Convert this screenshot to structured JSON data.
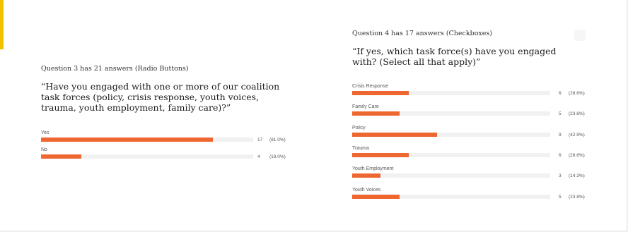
{
  "colors": {
    "bar": "#ee6630",
    "track": "#f1f1f1",
    "accent": "#f2c200"
  },
  "chart_data": [
    {
      "type": "bar",
      "orientation": "horizontal",
      "title": "Question 3 has 21 answers (Radio Buttons)",
      "question": "“Have you engaged with one or more of our coalition task forces (policy, crisis response, youth voices, trauma, youth employment, family care)?”",
      "categories": [
        "Yes",
        "No"
      ],
      "values": [
        17,
        4
      ],
      "value_labels": [
        "17",
        "4"
      ],
      "percent_labels": [
        "(81.0%)",
        "(19.0%)"
      ],
      "xlim": [
        0,
        21
      ]
    },
    {
      "type": "bar",
      "orientation": "horizontal",
      "title": "Question 4 has 17 answers (Checkboxes)",
      "question": "“If yes, which task force(s) have you engaged with? (Select all that apply)”",
      "categories": [
        "Crisis Response",
        "Family Care",
        "Policy",
        "Trauma",
        "Youth Employment",
        "Youth Voices"
      ],
      "values": [
        6,
        5,
        9,
        6,
        3,
        5
      ],
      "value_labels": [
        "6",
        "5",
        "9",
        "6",
        "3",
        "5"
      ],
      "percent_labels": [
        "(28.6%)",
        "(23.8%)",
        "(42.9%)",
        "(28.6%)",
        "(14.3%)",
        "(23.8%)"
      ],
      "xlim": [
        0,
        21
      ]
    }
  ]
}
